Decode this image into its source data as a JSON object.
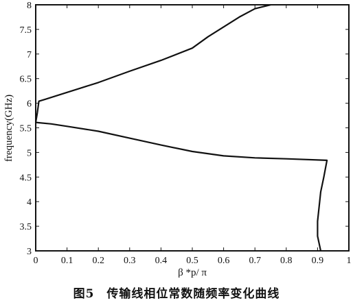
{
  "caption": "图5　传输线相位常数随频率变化曲线",
  "chart_data": {
    "type": "line",
    "title": "",
    "xlabel": "β *p/ π",
    "ylabel": "frequency(GHz)",
    "xlim": [
      0,
      1
    ],
    "ylim": [
      3,
      8
    ],
    "xticks": [
      0,
      0.1,
      0.2,
      0.3,
      0.4,
      0.5,
      0.6,
      0.7,
      0.8,
      0.9,
      1
    ],
    "xtick_labels": [
      "0",
      "0.1",
      "0.2",
      "0.3",
      "0.4",
      "0.5",
      "0.6",
      "0.7",
      "0.8",
      "0.9",
      "1"
    ],
    "yticks": [
      3,
      3.5,
      4,
      4.5,
      5,
      5.5,
      6,
      6.5,
      7,
      7.5,
      8
    ],
    "ytick_labels": [
      "3",
      "3.5",
      "4",
      "4.5",
      "5",
      "5.5",
      "6",
      "6.5",
      "7",
      "7.5",
      "8"
    ],
    "grid": false,
    "series": [
      {
        "points": [
          [
            0.91,
            3.0
          ],
          [
            0.9,
            3.3
          ],
          [
            0.9,
            3.6
          ],
          [
            0.905,
            3.9
          ],
          [
            0.91,
            4.2
          ],
          [
            0.92,
            4.5
          ],
          [
            0.93,
            4.84
          ],
          [
            0.8,
            4.87
          ],
          [
            0.7,
            4.89
          ],
          [
            0.6,
            4.93
          ],
          [
            0.5,
            5.02
          ],
          [
            0.4,
            5.15
          ],
          [
            0.3,
            5.29
          ],
          [
            0.2,
            5.43
          ],
          [
            0.1,
            5.53
          ],
          [
            0.05,
            5.58
          ],
          [
            0.0,
            5.61
          ]
        ]
      },
      {
        "points": [
          [
            0.0,
            5.61
          ],
          [
            0.005,
            5.8
          ],
          [
            0.01,
            6.04
          ],
          [
            0.03,
            6.08
          ],
          [
            0.1,
            6.22
          ],
          [
            0.2,
            6.42
          ],
          [
            0.3,
            6.65
          ],
          [
            0.4,
            6.87
          ],
          [
            0.5,
            7.12
          ],
          [
            0.55,
            7.35
          ],
          [
            0.6,
            7.55
          ],
          [
            0.65,
            7.75
          ],
          [
            0.7,
            7.92
          ],
          [
            0.75,
            8.0
          ]
        ]
      }
    ]
  }
}
